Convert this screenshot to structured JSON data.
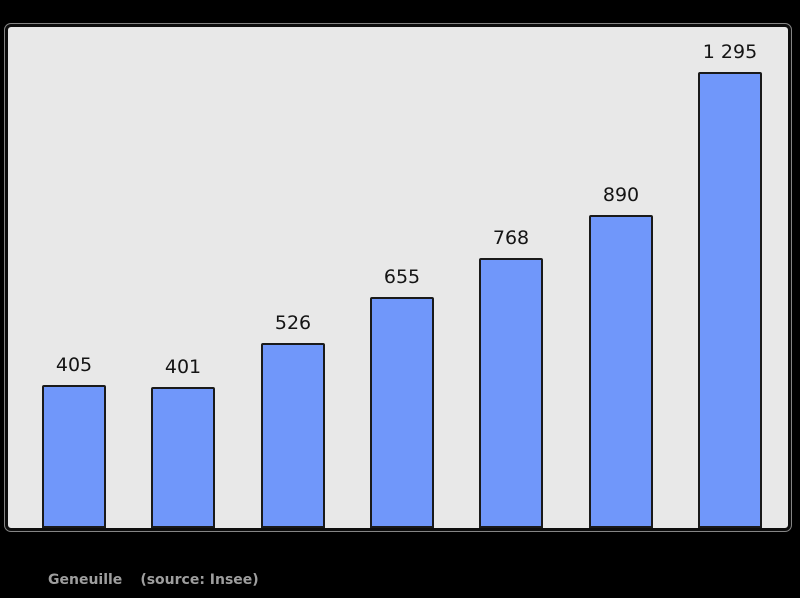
{
  "page": {
    "background": "#000000"
  },
  "chart_data": {
    "type": "bar",
    "title": "",
    "xlabel": "",
    "ylabel": "",
    "values": [
      405,
      401,
      526,
      655,
      768,
      890,
      1295
    ],
    "bar_labels": [
      "405",
      "401",
      "526",
      "655",
      "768",
      "890",
      "1 295"
    ],
    "ylim": [
      0,
      1423
    ],
    "grid": false,
    "legend": "none",
    "bar_count": 7,
    "colors": {
      "bar_fill": "#7097fa",
      "bar_border": "#1a1a1a",
      "plot_background": "#e8e8e8",
      "frame_border": "#0d0d0d",
      "value_label": "#141414",
      "caption_text": "#9e9e9e",
      "page_background": "#000000"
    }
  },
  "caption": {
    "commune": "Geneuille",
    "source": "(source: Insee)"
  }
}
